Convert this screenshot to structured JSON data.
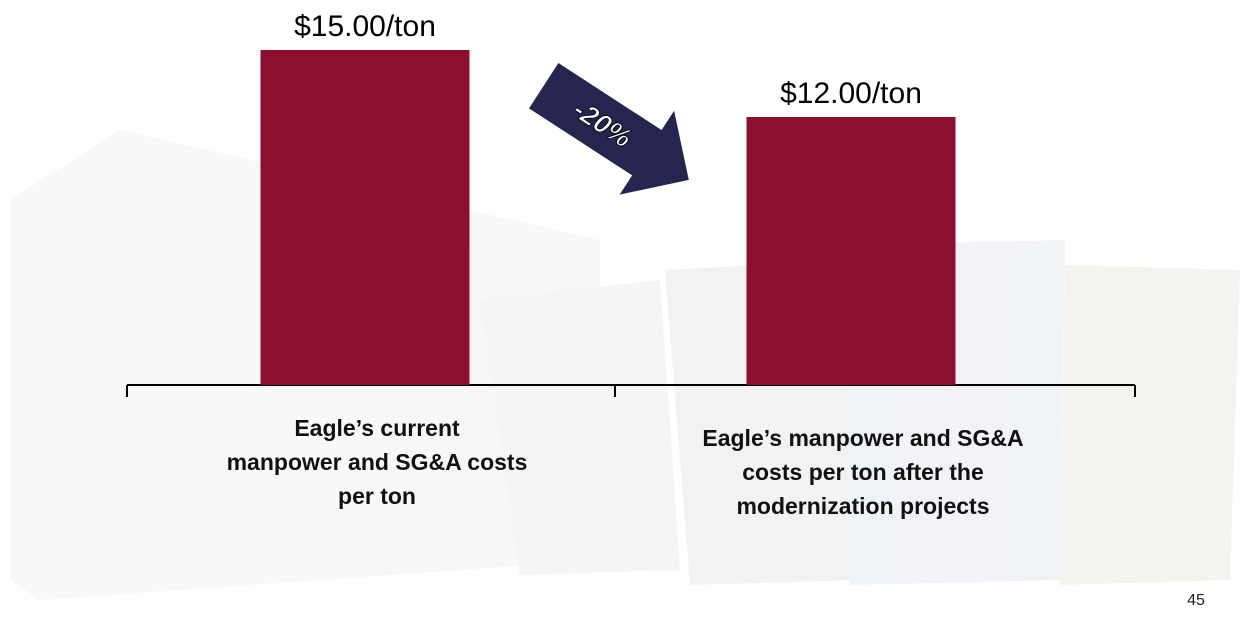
{
  "chart_data": {
    "type": "bar",
    "categories": [
      "Eagle’s current\nmanpower and SG&A costs\nper ton",
      "Eagle’s manpower and SG&A\ncosts per ton after the\nmodernization projects"
    ],
    "values": [
      15,
      12
    ],
    "value_labels": [
      "$15.00/ton",
      "$12.00/ton"
    ],
    "color": "#8c0f30",
    "annotation": "-20%",
    "page_number": "45"
  }
}
